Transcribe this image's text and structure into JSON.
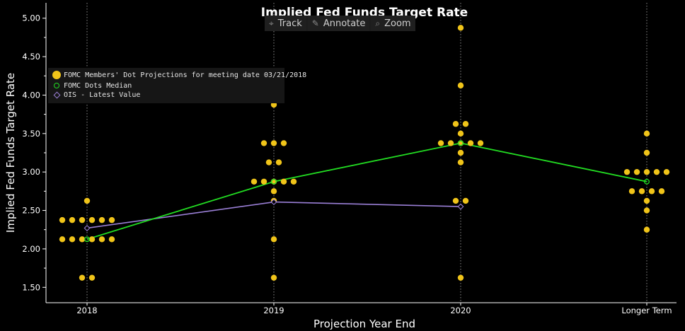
{
  "toolbar": {
    "track_label": "Track",
    "annotate_label": "Annotate",
    "zoom_label": "Zoom"
  },
  "chart_data": {
    "type": "scatter",
    "title": "Implied Fed Funds Target Rate",
    "xlabel": "Projection Year End",
    "ylabel": "Implied Fed Funds Target Rate",
    "categories": [
      "2018",
      "2019",
      "2020",
      "Longer Term"
    ],
    "ylim": [
      1.3,
      5.2
    ],
    "yticks": [
      "1.50",
      "2.00",
      "2.50",
      "3.00",
      "3.50",
      "4.00",
      "4.50",
      "5.00"
    ],
    "grid": "vertical dotted at categories",
    "legend_position": "top-left",
    "colors": {
      "dots": "#f0c419",
      "median": "#22dd22",
      "ois": "#9a7fd6"
    },
    "series": [
      {
        "name": "FOMC Members' Dot Projections for meeting date 03/21/2018",
        "kind": "dots",
        "points": [
          {
            "category": "2018",
            "values": [
              1.625,
              1.625,
              2.125,
              2.125,
              2.125,
              2.125,
              2.125,
              2.125,
              2.375,
              2.375,
              2.375,
              2.375,
              2.375,
              2.375,
              2.625
            ]
          },
          {
            "category": "2019",
            "values": [
              1.625,
              2.125,
              2.625,
              2.75,
              2.875,
              2.875,
              2.875,
              2.875,
              2.875,
              3.125,
              3.125,
              3.375,
              3.375,
              3.375,
              3.875
            ]
          },
          {
            "category": "2020",
            "values": [
              1.625,
              2.625,
              2.625,
              3.125,
              3.25,
              3.375,
              3.375,
              3.375,
              3.375,
              3.375,
              3.5,
              3.625,
              3.625,
              4.125,
              4.875
            ]
          },
          {
            "category": "Longer Term",
            "values": [
              2.25,
              2.5,
              2.625,
              2.75,
              2.75,
              2.75,
              2.75,
              3.0,
              3.0,
              3.0,
              3.0,
              3.0,
              3.25,
              3.5
            ]
          }
        ]
      },
      {
        "name": "FOMC Dots Median",
        "kind": "median",
        "values": [
          2.125,
          2.875,
          3.375,
          2.875
        ]
      },
      {
        "name": "OIS - Latest Value",
        "kind": "ois",
        "values": [
          2.27,
          2.61,
          2.55,
          null
        ]
      }
    ]
  }
}
